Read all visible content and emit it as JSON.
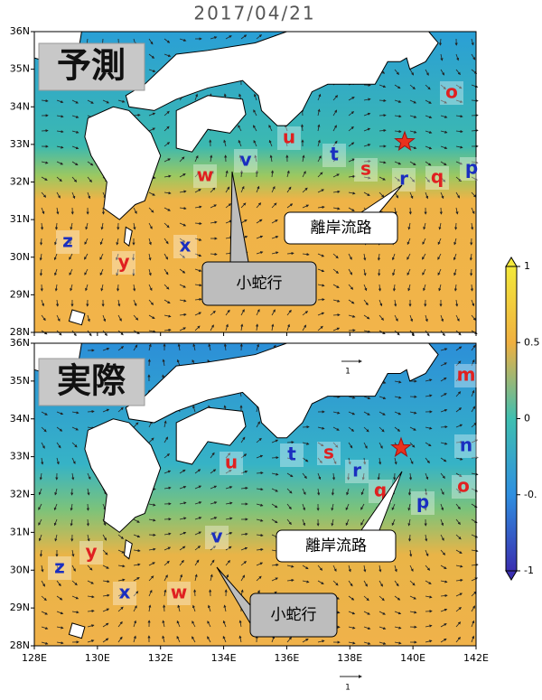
{
  "date": "2017/04/21",
  "lat_labels": [
    "28N",
    "29N",
    "30N",
    "31N",
    "32N",
    "33N",
    "34N",
    "35N",
    "36N"
  ],
  "lon_labels": [
    "128E",
    "130E",
    "132E",
    "134E",
    "136E",
    "138E",
    "140E",
    "142E"
  ],
  "panels": [
    {
      "label": "予測",
      "markers": [
        {
          "text": "o",
          "color": "#e02020"
        },
        {
          "text": "u",
          "color": "#e02020"
        },
        {
          "text": "t",
          "color": "#1a2ec0"
        },
        {
          "text": "s",
          "color": "#e02020"
        },
        {
          "text": "r",
          "color": "#1a2ec0"
        },
        {
          "text": "q",
          "color": "#e02020"
        },
        {
          "text": "p",
          "color": "#1a2ec0"
        },
        {
          "text": "w",
          "color": "#e02020"
        },
        {
          "text": "v",
          "color": "#1a2ec0"
        },
        {
          "text": "x",
          "color": "#1a2ec0"
        },
        {
          "text": "z",
          "color": "#1a2ec0"
        },
        {
          "text": "y",
          "color": "#e02020"
        }
      ],
      "callouts": [
        "離岸流路",
        "小蛇行"
      ]
    },
    {
      "label": "実際",
      "markers": [
        {
          "text": "m",
          "color": "#e02020"
        },
        {
          "text": "n",
          "color": "#1a2ec0"
        },
        {
          "text": "o",
          "color": "#e02020"
        },
        {
          "text": "u",
          "color": "#e02020"
        },
        {
          "text": "t",
          "color": "#1a2ec0"
        },
        {
          "text": "s",
          "color": "#e02020"
        },
        {
          "text": "r",
          "color": "#1a2ec0"
        },
        {
          "text": "q",
          "color": "#e02020"
        },
        {
          "text": "p",
          "color": "#1a2ec0"
        },
        {
          "text": "v",
          "color": "#1a2ec0"
        },
        {
          "text": "y",
          "color": "#e02020"
        },
        {
          "text": "z",
          "color": "#1a2ec0"
        },
        {
          "text": "x",
          "color": "#1a2ec0"
        },
        {
          "text": "w",
          "color": "#e02020"
        }
      ],
      "callouts": [
        "離岸流路",
        "小蛇行"
      ],
      "vector_scale": "1"
    }
  ],
  "colorbar_labels": [
    "1",
    "0.5",
    "0",
    "-0.",
    "-1"
  ],
  "vector_scale": "1"
}
